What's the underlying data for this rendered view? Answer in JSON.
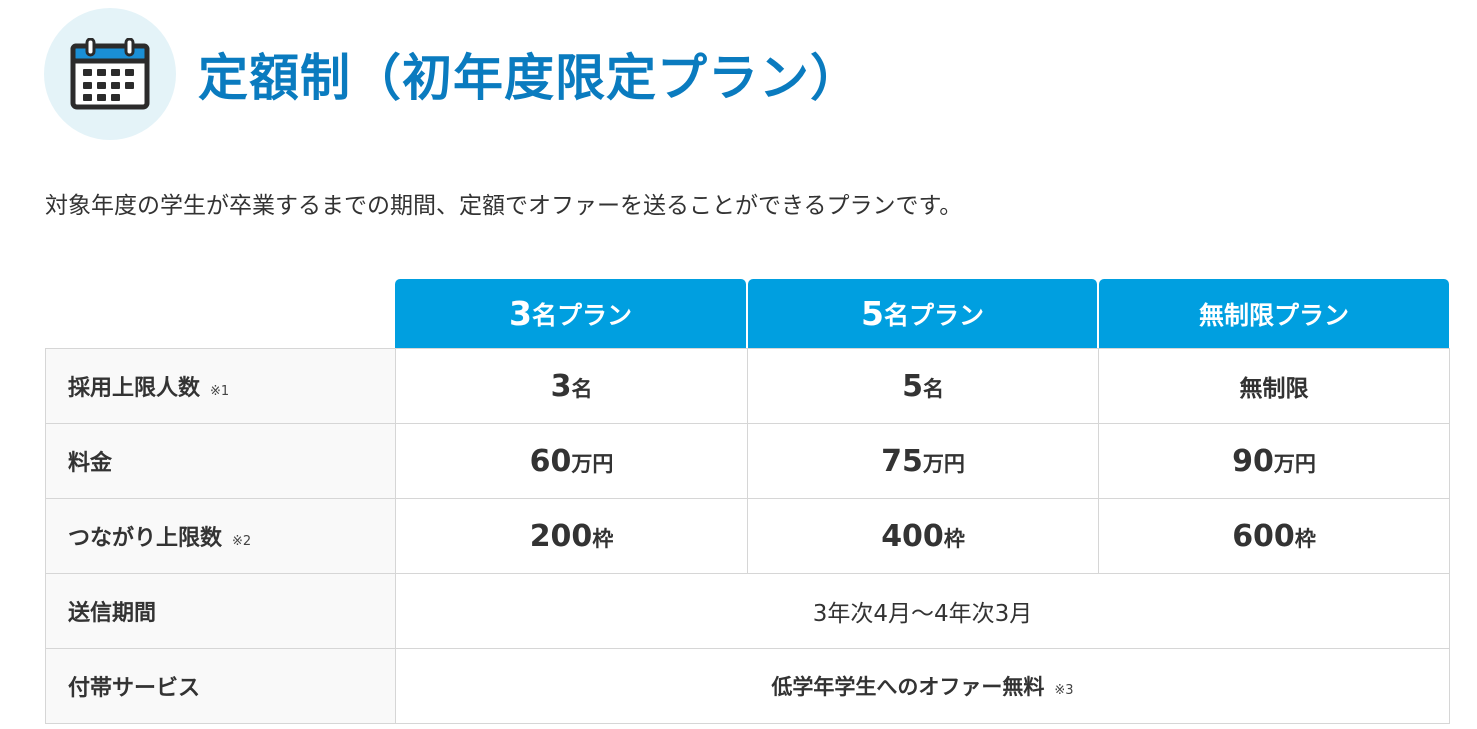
{
  "header": {
    "icon": "calendar-icon",
    "title": "定額制（初年度限定プラン）"
  },
  "description": "対象年度の学生が卒業するまでの期間、定額でオファーを送ることができるプランです。",
  "colors": {
    "title": "#0a7bbf",
    "header_bg": "#009fe0",
    "icon_circle_bg": "#e4f3f8",
    "border": "#d6d6d6"
  },
  "plans": [
    {
      "num": "3",
      "suffix": "名プラン"
    },
    {
      "num": "5",
      "suffix": "名プラン"
    },
    {
      "num": "",
      "suffix": "無制限プラン"
    }
  ],
  "rows": {
    "hire_limit": {
      "label": "採用上限人数",
      "note": "※1",
      "values": [
        {
          "num": "3",
          "unit": "名"
        },
        {
          "num": "5",
          "unit": "名"
        },
        {
          "text": "無制限"
        }
      ]
    },
    "price": {
      "label": "料金",
      "values": [
        {
          "num": "60",
          "unit": "万円"
        },
        {
          "num": "75",
          "unit": "万円"
        },
        {
          "num": "90",
          "unit": "万円"
        }
      ]
    },
    "connection_limit": {
      "label": "つながり上限数",
      "note": "※2",
      "values": [
        {
          "num": "200",
          "unit": "枠"
        },
        {
          "num": "400",
          "unit": "枠"
        },
        {
          "num": "600",
          "unit": "枠"
        }
      ]
    },
    "send_period": {
      "label": "送信期間",
      "value": "3年次4月〜4年次3月"
    },
    "extra_service": {
      "label": "付帯サービス",
      "value": "低学年学生へのオファー無料",
      "note": "※3"
    }
  }
}
